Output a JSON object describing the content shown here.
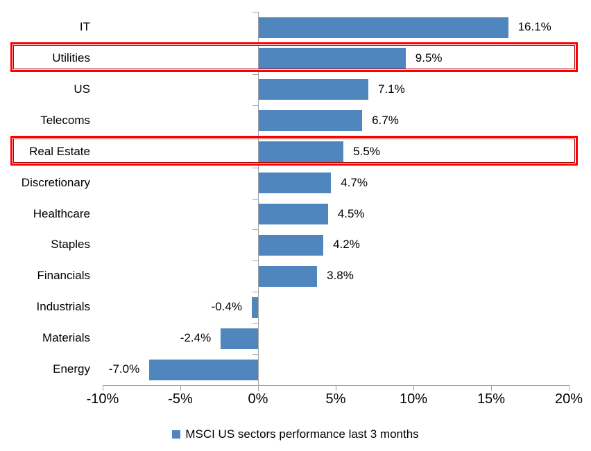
{
  "chart_data": {
    "type": "bar",
    "orientation": "horizontal",
    "title": "",
    "xlabel": "",
    "ylabel": "",
    "categories": [
      "IT",
      "Utilities",
      "US",
      "Telecoms",
      "Real Estate",
      "Discretionary",
      "Healthcare",
      "Staples",
      "Financials",
      "Industrials",
      "Materials",
      "Energy"
    ],
    "values": [
      16.1,
      9.5,
      7.1,
      6.7,
      5.5,
      4.7,
      4.5,
      4.2,
      3.8,
      -0.4,
      -2.4,
      -7.0
    ],
    "data_labels": [
      "16.1%",
      "9.5%",
      "7.1%",
      "6.7%",
      "5.5%",
      "4.7%",
      "4.5%",
      "4.2%",
      "3.8%",
      "-0.4%",
      "-2.4%",
      "-7.0%"
    ],
    "highlighted_categories": [
      "Utilities",
      "Real Estate"
    ],
    "x_tick_labels": [
      "-10%",
      "-5%",
      "0%",
      "5%",
      "10%",
      "15%",
      "20%"
    ],
    "x_tick_values": [
      -10,
      -5,
      0,
      5,
      10,
      15,
      20
    ],
    "xlim": [
      -10,
      20
    ],
    "grid": "off",
    "legend": "MSCI US sectors performance last 3 months",
    "legend_position": "bottom-center",
    "colors": {
      "bar": "#4F86BD",
      "highlight_border": "#FF0000",
      "axis": "#A0A0A0",
      "text": "#000000"
    }
  }
}
